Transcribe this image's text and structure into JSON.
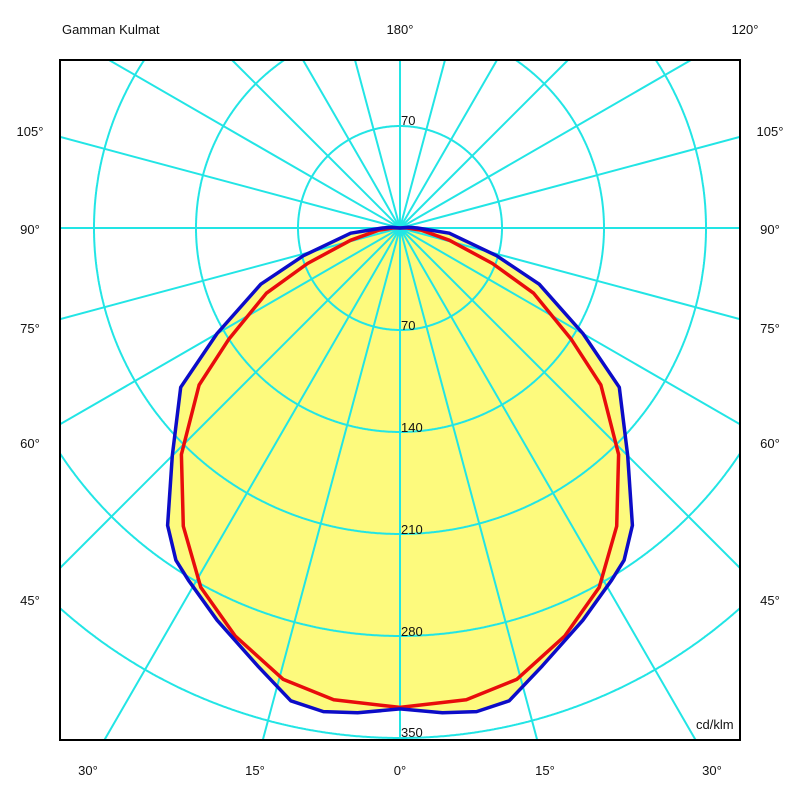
{
  "chart_data": {
    "type": "polar",
    "title": "Gamman Kulmat",
    "unit_label": "cd/klm",
    "radial_ticks": [
      70,
      140,
      210,
      280,
      350
    ],
    "radial_tick_top_label": "70",
    "angle_labels": {
      "top": [
        "180°",
        "120°"
      ],
      "left": [
        "105°",
        "90°",
        "75°",
        "60°",
        "45°"
      ],
      "right": [
        "105°",
        "90°",
        "75°",
        "60°",
        "45°"
      ],
      "bottom": [
        "30°",
        "15°",
        "0°",
        "15°",
        "30°"
      ]
    },
    "angular_grid_step_deg": 15,
    "grid": true,
    "symmetric": true,
    "colors": {
      "grid": "#22e5e5",
      "fill": "#fdfa7d",
      "series_1": "#e80c0c",
      "series_2": "#0c0cc8",
      "frame": "#000000"
    },
    "series": [
      {
        "color": "#e80c0c",
        "angles": [
          0,
          8,
          14.5,
          22,
          29,
          36,
          44,
          52,
          57,
          64,
          69,
          76,
          84,
          90
        ],
        "values": [
          329,
          327,
          320,
          302,
          282,
          253,
          216,
          175,
          140,
          102,
          68,
          35,
          15,
          5
        ]
      },
      {
        "color": "#0c0cc8",
        "angles": [
          0,
          5,
          9,
          13,
          18,
          25,
          31,
          34,
          38,
          45,
          54,
          60,
          68,
          74,
          84,
          90,
          95
        ],
        "values": [
          330,
          334,
          336,
          333,
          316,
          297,
          282,
          275,
          259,
          221,
          186,
          145,
          103,
          69,
          34,
          12,
          6
        ]
      }
    ]
  }
}
